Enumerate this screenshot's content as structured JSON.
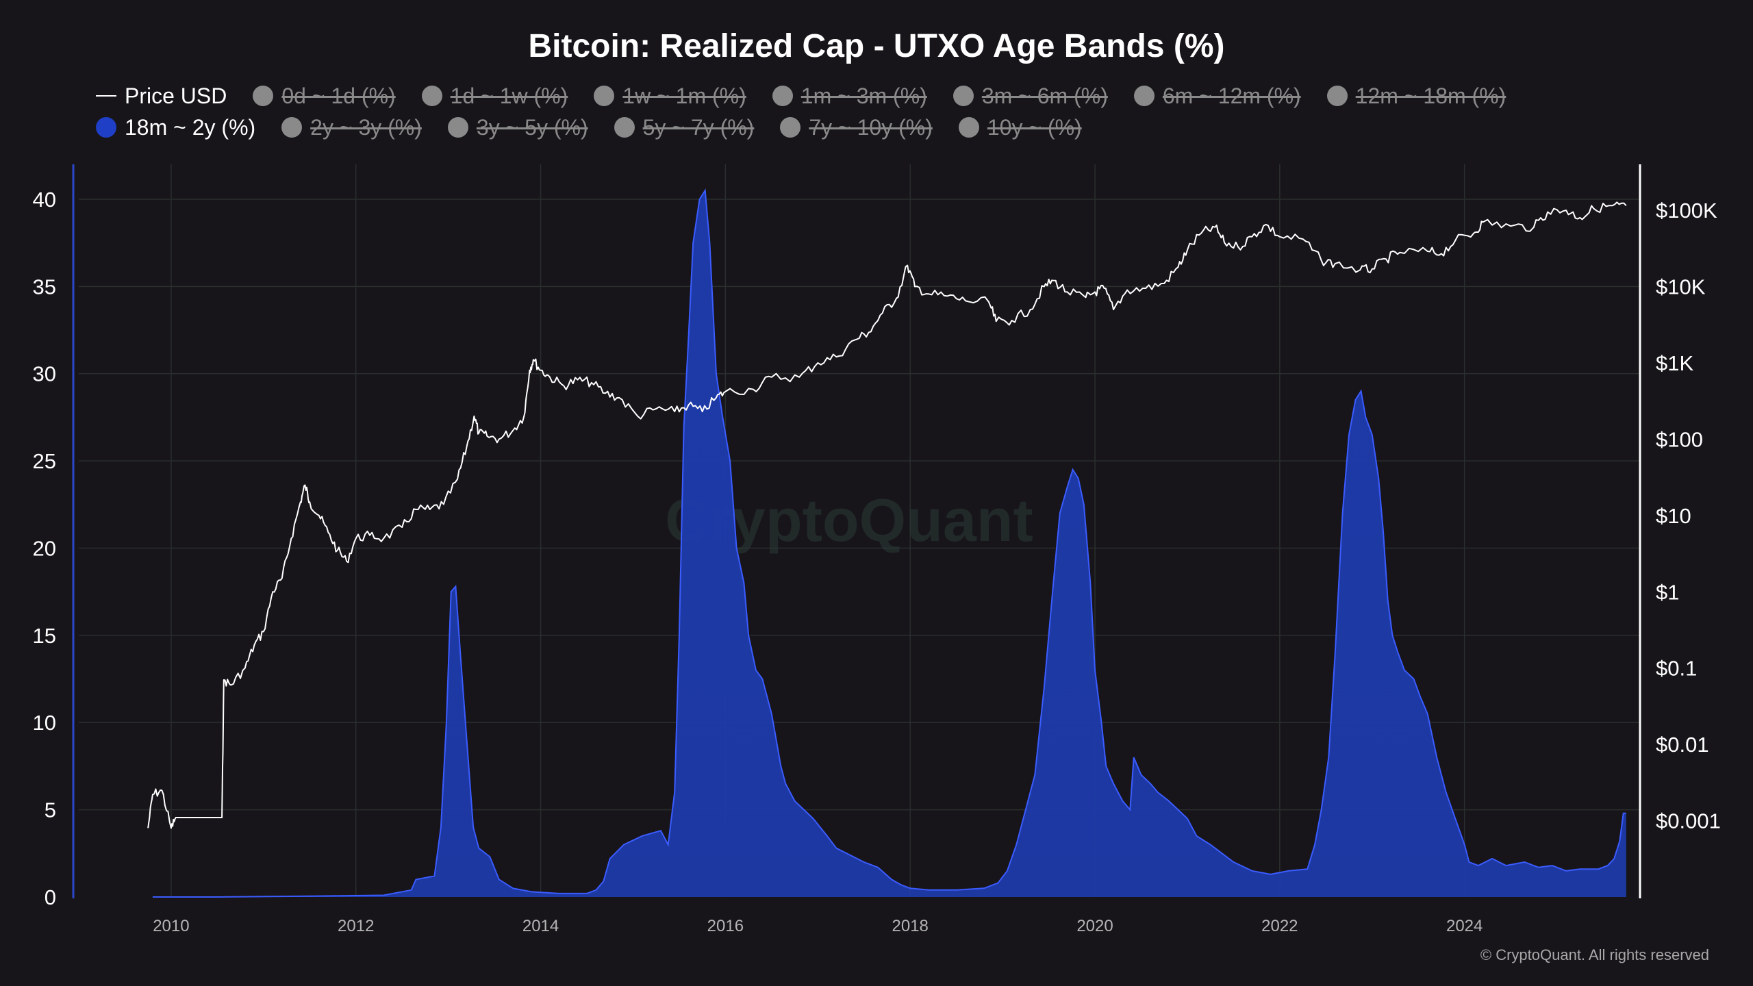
{
  "chart_data": {
    "type": "area",
    "title": "Bitcoin: Realized Cap - UTXO Age Bands (%)",
    "watermark": "CryptoQuant",
    "copyright": "© CryptoQuant. All rights reserved",
    "x_range": [
      2009.0,
      2025.9
    ],
    "x_ticks": [
      {
        "value": 2010,
        "label": "2010"
      },
      {
        "value": 2012,
        "label": "2012"
      },
      {
        "value": 2014,
        "label": "2014"
      },
      {
        "value": 2016,
        "label": "2016"
      },
      {
        "value": 2018,
        "label": "2018"
      },
      {
        "value": 2020,
        "label": "2020"
      },
      {
        "value": 2022,
        "label": "2022"
      },
      {
        "value": 2024,
        "label": "2024"
      }
    ],
    "left_axis": {
      "ylim": [
        0,
        42
      ],
      "ticks": [
        {
          "value": 0,
          "label": "0"
        },
        {
          "value": 5,
          "label": "5"
        },
        {
          "value": 10,
          "label": "10"
        },
        {
          "value": 15,
          "label": "15"
        },
        {
          "value": 20,
          "label": "20"
        },
        {
          "value": 25,
          "label": "25"
        },
        {
          "value": 30,
          "label": "30"
        },
        {
          "value": 35,
          "label": "35"
        },
        {
          "value": 40,
          "label": "40"
        }
      ]
    },
    "right_axis": {
      "scale": "log",
      "ylim": [
        0.0001,
        400000
      ],
      "ticks": [
        {
          "value": 100000,
          "label": "$100K"
        },
        {
          "value": 10000,
          "label": "$10K"
        },
        {
          "value": 1000,
          "label": "$1K"
        },
        {
          "value": 100,
          "label": "$100"
        },
        {
          "value": 10,
          "label": "$10"
        },
        {
          "value": 1,
          "label": "$1"
        },
        {
          "value": 0.1,
          "label": "$0.1"
        },
        {
          "value": 0.01,
          "label": "$0.01"
        },
        {
          "value": 0.001,
          "label": "$0.001"
        }
      ]
    },
    "grid": true,
    "legend": {
      "placement": "top-left",
      "items": [
        {
          "label": "Price USD",
          "type": "line",
          "active": true
        },
        {
          "label": "0d ~ 1d (%)",
          "type": "dot",
          "active": false
        },
        {
          "label": "1d ~ 1w (%)",
          "type": "dot",
          "active": false
        },
        {
          "label": "1w ~ 1m (%)",
          "type": "dot",
          "active": false
        },
        {
          "label": "1m ~ 3m (%)",
          "type": "dot",
          "active": false
        },
        {
          "label": "3m ~ 6m (%)",
          "type": "dot",
          "active": false
        },
        {
          "label": "6m ~ 12m (%)",
          "type": "dot",
          "active": false
        },
        {
          "label": "12m ~ 18m (%)",
          "type": "dot",
          "active": false
        },
        {
          "label": "18m ~ 2y (%)",
          "type": "dot",
          "active": true
        },
        {
          "label": "2y ~ 3y (%)",
          "type": "dot",
          "active": false
        },
        {
          "label": "3y ~ 5y (%)",
          "type": "dot",
          "active": false
        },
        {
          "label": "5y ~ 7y (%)",
          "type": "dot",
          "active": false
        },
        {
          "label": "7y ~ 10y (%)",
          "type": "dot",
          "active": false
        },
        {
          "label": "10y ~ (%)",
          "type": "dot",
          "active": false
        }
      ]
    },
    "colors": {
      "background": "#17151a",
      "band_fill": "#1d3aa8",
      "band_stroke": "#3b5cff",
      "price_line": "#ffffff",
      "grid": "#2a2e2d",
      "inactive": "#8a8a8a",
      "active_dot": "#1f3fc7",
      "left_axis_line": "#2c47c9"
    },
    "series": [
      {
        "name": "18m ~ 2y (%)",
        "axis": "left",
        "type": "area",
        "points": [
          [
            2009.8,
            0.0
          ],
          [
            2010.5,
            0.0
          ],
          [
            2011.5,
            0.05
          ],
          [
            2012.3,
            0.1
          ],
          [
            2012.6,
            0.4
          ],
          [
            2012.65,
            1.0
          ],
          [
            2012.85,
            1.2
          ],
          [
            2012.92,
            4.0
          ],
          [
            2012.98,
            10.0
          ],
          [
            2013.03,
            17.5
          ],
          [
            2013.08,
            17.8
          ],
          [
            2013.13,
            14.0
          ],
          [
            2013.2,
            9.0
          ],
          [
            2013.27,
            4.0
          ],
          [
            2013.33,
            2.8
          ],
          [
            2013.45,
            2.3
          ],
          [
            2013.55,
            1.0
          ],
          [
            2013.7,
            0.5
          ],
          [
            2013.9,
            0.3
          ],
          [
            2014.2,
            0.2
          ],
          [
            2014.5,
            0.2
          ],
          [
            2014.6,
            0.4
          ],
          [
            2014.68,
            0.9
          ],
          [
            2014.75,
            2.2
          ],
          [
            2014.9,
            3.0
          ],
          [
            2015.1,
            3.5
          ],
          [
            2015.3,
            3.8
          ],
          [
            2015.38,
            3.0
          ],
          [
            2015.45,
            6.0
          ],
          [
            2015.5,
            15.0
          ],
          [
            2015.55,
            27.0
          ],
          [
            2015.6,
            32.0
          ],
          [
            2015.65,
            37.5
          ],
          [
            2015.72,
            40.0
          ],
          [
            2015.78,
            40.5
          ],
          [
            2015.83,
            37.5
          ],
          [
            2015.9,
            30.0
          ],
          [
            2015.97,
            27.5
          ],
          [
            2016.05,
            25.0
          ],
          [
            2016.12,
            20.0
          ],
          [
            2016.2,
            18.0
          ],
          [
            2016.25,
            15.0
          ],
          [
            2016.33,
            13.0
          ],
          [
            2016.4,
            12.5
          ],
          [
            2016.45,
            11.5
          ],
          [
            2016.5,
            10.5
          ],
          [
            2016.55,
            9.0
          ],
          [
            2016.6,
            7.5
          ],
          [
            2016.65,
            6.5
          ],
          [
            2016.75,
            5.5
          ],
          [
            2016.95,
            4.5
          ],
          [
            2017.1,
            3.5
          ],
          [
            2017.2,
            2.8
          ],
          [
            2017.35,
            2.4
          ],
          [
            2017.5,
            2.0
          ],
          [
            2017.65,
            1.7
          ],
          [
            2017.8,
            1.0
          ],
          [
            2017.9,
            0.7
          ],
          [
            2018.0,
            0.5
          ],
          [
            2018.2,
            0.4
          ],
          [
            2018.5,
            0.4
          ],
          [
            2018.8,
            0.5
          ],
          [
            2018.95,
            0.8
          ],
          [
            2019.05,
            1.5
          ],
          [
            2019.15,
            3.0
          ],
          [
            2019.25,
            5.0
          ],
          [
            2019.35,
            7.0
          ],
          [
            2019.45,
            12.0
          ],
          [
            2019.55,
            18.0
          ],
          [
            2019.62,
            22.0
          ],
          [
            2019.7,
            23.5
          ],
          [
            2019.76,
            24.5
          ],
          [
            2019.82,
            24.0
          ],
          [
            2019.88,
            22.5
          ],
          [
            2019.95,
            18.0
          ],
          [
            2020.0,
            13.0
          ],
          [
            2020.07,
            10.0
          ],
          [
            2020.12,
            7.5
          ],
          [
            2020.2,
            6.5
          ],
          [
            2020.3,
            5.5
          ],
          [
            2020.38,
            5.0
          ],
          [
            2020.42,
            8.0
          ],
          [
            2020.5,
            7.0
          ],
          [
            2020.6,
            6.5
          ],
          [
            2020.68,
            6.0
          ],
          [
            2020.8,
            5.5
          ],
          [
            2020.9,
            5.0
          ],
          [
            2021.0,
            4.5
          ],
          [
            2021.1,
            3.5
          ],
          [
            2021.25,
            3.0
          ],
          [
            2021.5,
            2.0
          ],
          [
            2021.7,
            1.5
          ],
          [
            2021.9,
            1.3
          ],
          [
            2022.1,
            1.5
          ],
          [
            2022.3,
            1.6
          ],
          [
            2022.38,
            3.0
          ],
          [
            2022.45,
            5.0
          ],
          [
            2022.53,
            8.0
          ],
          [
            2022.6,
            14.0
          ],
          [
            2022.68,
            22.0
          ],
          [
            2022.75,
            26.5
          ],
          [
            2022.82,
            28.5
          ],
          [
            2022.88,
            29.0
          ],
          [
            2022.93,
            27.5
          ],
          [
            2023.0,
            26.5
          ],
          [
            2023.07,
            24.0
          ],
          [
            2023.12,
            21.0
          ],
          [
            2023.17,
            17.0
          ],
          [
            2023.22,
            15.0
          ],
          [
            2023.28,
            14.0
          ],
          [
            2023.35,
            13.0
          ],
          [
            2023.45,
            12.5
          ],
          [
            2023.52,
            11.5
          ],
          [
            2023.6,
            10.5
          ],
          [
            2023.7,
            8.0
          ],
          [
            2023.8,
            6.0
          ],
          [
            2023.9,
            4.5
          ],
          [
            2024.0,
            3.0
          ],
          [
            2024.05,
            2.0
          ],
          [
            2024.15,
            1.8
          ],
          [
            2024.3,
            2.2
          ],
          [
            2024.45,
            1.8
          ],
          [
            2024.65,
            2.0
          ],
          [
            2024.8,
            1.7
          ],
          [
            2024.95,
            1.8
          ],
          [
            2025.1,
            1.5
          ],
          [
            2025.25,
            1.6
          ],
          [
            2025.45,
            1.6
          ],
          [
            2025.55,
            1.8
          ],
          [
            2025.62,
            2.2
          ],
          [
            2025.68,
            3.2
          ],
          [
            2025.72,
            4.8
          ],
          [
            2025.75,
            4.8
          ]
        ]
      },
      {
        "name": "Price USD",
        "axis": "right",
        "type": "line",
        "points": [
          [
            2009.75,
            0.0008
          ],
          [
            2009.8,
            0.0022
          ],
          [
            2009.9,
            0.0025
          ],
          [
            2010.0,
            0.0008
          ],
          [
            2010.05,
            0.0011
          ],
          [
            2010.55,
            0.0011
          ],
          [
            2010.57,
            0.07
          ],
          [
            2010.65,
            0.06
          ],
          [
            2010.8,
            0.1
          ],
          [
            2010.9,
            0.2
          ],
          [
            2011.0,
            0.3
          ],
          [
            2011.1,
            1.0
          ],
          [
            2011.2,
            1.5
          ],
          [
            2011.3,
            5.0
          ],
          [
            2011.4,
            15.0
          ],
          [
            2011.45,
            25.0
          ],
          [
            2011.5,
            15.0
          ],
          [
            2011.6,
            10.0
          ],
          [
            2011.7,
            6.0
          ],
          [
            2011.8,
            3.5
          ],
          [
            2011.9,
            2.5
          ],
          [
            2012.0,
            5.0
          ],
          [
            2012.15,
            5.5
          ],
          [
            2012.3,
            5.0
          ],
          [
            2012.5,
            7.0
          ],
          [
            2012.65,
            12.0
          ],
          [
            2012.8,
            12.0
          ],
          [
            2012.95,
            14.0
          ],
          [
            2013.1,
            30.0
          ],
          [
            2013.2,
            80.0
          ],
          [
            2013.28,
            200.0
          ],
          [
            2013.33,
            120.0
          ],
          [
            2013.42,
            110.0
          ],
          [
            2013.55,
            100.0
          ],
          [
            2013.7,
            130.0
          ],
          [
            2013.82,
            200.0
          ],
          [
            2013.88,
            800.0
          ],
          [
            2013.92,
            1100.0
          ],
          [
            2014.0,
            800.0
          ],
          [
            2014.1,
            650.0
          ],
          [
            2014.25,
            500.0
          ],
          [
            2014.4,
            600.0
          ],
          [
            2014.55,
            550.0
          ],
          [
            2014.7,
            400.0
          ],
          [
            2014.85,
            350.0
          ],
          [
            2015.05,
            200.0
          ],
          [
            2015.25,
            250.0
          ],
          [
            2015.45,
            230.0
          ],
          [
            2015.6,
            280.0
          ],
          [
            2015.75,
            230.0
          ],
          [
            2015.9,
            350.0
          ],
          [
            2016.0,
            420.0
          ],
          [
            2016.3,
            450.0
          ],
          [
            2016.5,
            650.0
          ],
          [
            2016.8,
            650.0
          ],
          [
            2017.0,
            1000.0
          ],
          [
            2017.2,
            1200.0
          ],
          [
            2017.4,
            2000.0
          ],
          [
            2017.55,
            2500.0
          ],
          [
            2017.7,
            4500.0
          ],
          [
            2017.85,
            7000.0
          ],
          [
            2017.97,
            19000.0
          ],
          [
            2018.05,
            10000.0
          ],
          [
            2018.2,
            8000.0
          ],
          [
            2018.4,
            7500.0
          ],
          [
            2018.6,
            6500.0
          ],
          [
            2018.85,
            6300.0
          ],
          [
            2018.93,
            3500.0
          ],
          [
            2019.1,
            3600.0
          ],
          [
            2019.3,
            5000.0
          ],
          [
            2019.45,
            10000.0
          ],
          [
            2019.55,
            12000.0
          ],
          [
            2019.7,
            8500.0
          ],
          [
            2019.9,
            7200.0
          ],
          [
            2020.0,
            8500.0
          ],
          [
            2020.1,
            9500.0
          ],
          [
            2020.2,
            5000.0
          ],
          [
            2020.35,
            9000.0
          ],
          [
            2020.55,
            9500.0
          ],
          [
            2020.75,
            11000.0
          ],
          [
            2020.9,
            18000.0
          ],
          [
            2021.0,
            30000.0
          ],
          [
            2021.15,
            50000.0
          ],
          [
            2021.3,
            60000.0
          ],
          [
            2021.4,
            38000.0
          ],
          [
            2021.55,
            33000.0
          ],
          [
            2021.7,
            45000.0
          ],
          [
            2021.85,
            65000.0
          ],
          [
            2022.0,
            45000.0
          ],
          [
            2022.25,
            42000.0
          ],
          [
            2022.45,
            22000.0
          ],
          [
            2022.6,
            20000.0
          ],
          [
            2022.87,
            16500.0
          ],
          [
            2023.0,
            17000.0
          ],
          [
            2023.15,
            23000.0
          ],
          [
            2023.3,
            28000.0
          ],
          [
            2023.6,
            29000.0
          ],
          [
            2023.75,
            27000.0
          ],
          [
            2023.9,
            40000.0
          ],
          [
            2024.1,
            50000.0
          ],
          [
            2024.2,
            70000.0
          ],
          [
            2024.5,
            62000.0
          ],
          [
            2024.75,
            60000.0
          ],
          [
            2024.9,
            95000.0
          ],
          [
            2025.1,
            100000.0
          ],
          [
            2025.25,
            80000.0
          ],
          [
            2025.4,
            105000.0
          ],
          [
            2025.6,
            115000.0
          ],
          [
            2025.75,
            115000.0
          ]
        ]
      }
    ]
  }
}
